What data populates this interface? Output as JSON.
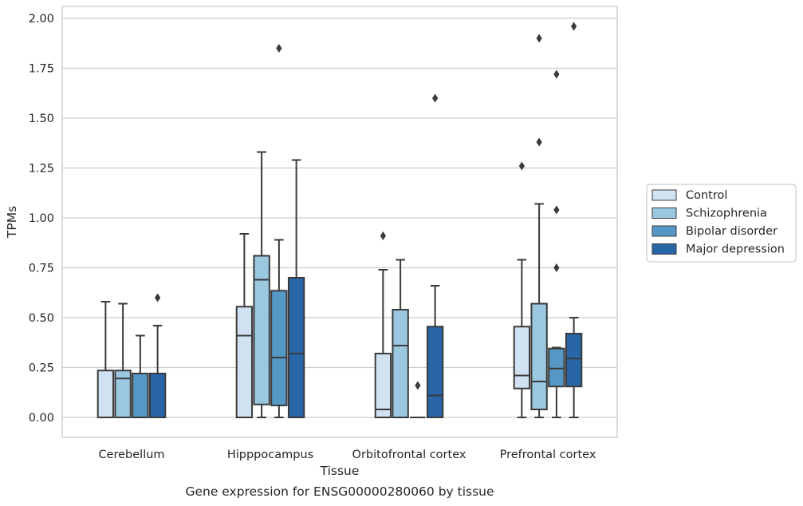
{
  "chart_data": {
    "type": "box",
    "title": "",
    "caption": "Gene expression for ENSG00000280060 by tissue",
    "xlabel": "Tissue",
    "ylabel": "TPMs",
    "ylim": [
      -0.1,
      2.06
    ],
    "yticks": [
      0.0,
      0.25,
      0.5,
      0.75,
      1.0,
      1.25,
      1.5,
      1.75,
      2.0
    ],
    "ytick_labels": [
      "0.00",
      "0.25",
      "0.50",
      "0.75",
      "1.00",
      "1.25",
      "1.50",
      "1.75",
      "2.00"
    ],
    "grid": true,
    "legend_position": "right",
    "categories": [
      "Cerebellum",
      "Hipppocampus",
      "Orbitofrontal cortex",
      "Prefrontal cortex"
    ],
    "series": [
      {
        "name": "Control",
        "color": "#d0e1f2",
        "boxes": [
          {
            "min": 0.0,
            "q1": 0.0,
            "median": 0.0,
            "q3": 0.235,
            "max": 0.58,
            "outliers": []
          },
          {
            "min": 0.0,
            "q1": 0.0,
            "median": 0.41,
            "q3": 0.555,
            "max": 0.92,
            "outliers": []
          },
          {
            "min": 0.0,
            "q1": 0.0,
            "median": 0.04,
            "q3": 0.32,
            "max": 0.74,
            "outliers": [
              0.91
            ]
          },
          {
            "min": 0.0,
            "q1": 0.145,
            "median": 0.21,
            "q3": 0.455,
            "max": 0.79,
            "outliers": [
              1.26
            ]
          }
        ]
      },
      {
        "name": "Schizophrenia",
        "color": "#9ac8e0",
        "boxes": [
          {
            "min": 0.0,
            "q1": 0.0,
            "median": 0.195,
            "q3": 0.235,
            "max": 0.57,
            "outliers": []
          },
          {
            "min": 0.0,
            "q1": 0.065,
            "median": 0.69,
            "q3": 0.81,
            "max": 1.33,
            "outliers": []
          },
          {
            "min": 0.0,
            "q1": 0.0,
            "median": 0.36,
            "q3": 0.54,
            "max": 0.79,
            "outliers": []
          },
          {
            "min": 0.0,
            "q1": 0.04,
            "median": 0.18,
            "q3": 0.57,
            "max": 1.07,
            "outliers": [
              1.38,
              1.9
            ]
          }
        ]
      },
      {
        "name": "Bipolar disorder",
        "color": "#5598c6",
        "boxes": [
          {
            "min": 0.0,
            "q1": 0.0,
            "median": 0.0,
            "q3": 0.22,
            "max": 0.41,
            "outliers": []
          },
          {
            "min": 0.0,
            "q1": 0.06,
            "median": 0.3,
            "q3": 0.635,
            "max": 0.89,
            "outliers": [
              1.85
            ]
          },
          {
            "min": 0.0,
            "q1": 0.0,
            "median": 0.0,
            "q3": 0.0,
            "max": 0.0,
            "outliers": [
              0.16
            ]
          },
          {
            "min": 0.0,
            "q1": 0.155,
            "median": 0.245,
            "q3": 0.345,
            "max": 0.35,
            "outliers": [
              0.75,
              1.04,
              1.72
            ]
          }
        ]
      },
      {
        "name": "Major depression",
        "color": "#2866a8",
        "boxes": [
          {
            "min": 0.0,
            "q1": 0.0,
            "median": 0.0,
            "q3": 0.22,
            "max": 0.46,
            "outliers": [
              0.6
            ]
          },
          {
            "min": 0.0,
            "q1": 0.0,
            "median": 0.32,
            "q3": 0.7,
            "max": 1.29,
            "outliers": []
          },
          {
            "min": 0.0,
            "q1": 0.0,
            "median": 0.11,
            "q3": 0.455,
            "max": 0.66,
            "outliers": [
              1.6
            ]
          },
          {
            "min": 0.0,
            "q1": 0.155,
            "median": 0.295,
            "q3": 0.42,
            "max": 0.5,
            "outliers": [
              1.96
            ]
          }
        ]
      }
    ]
  }
}
